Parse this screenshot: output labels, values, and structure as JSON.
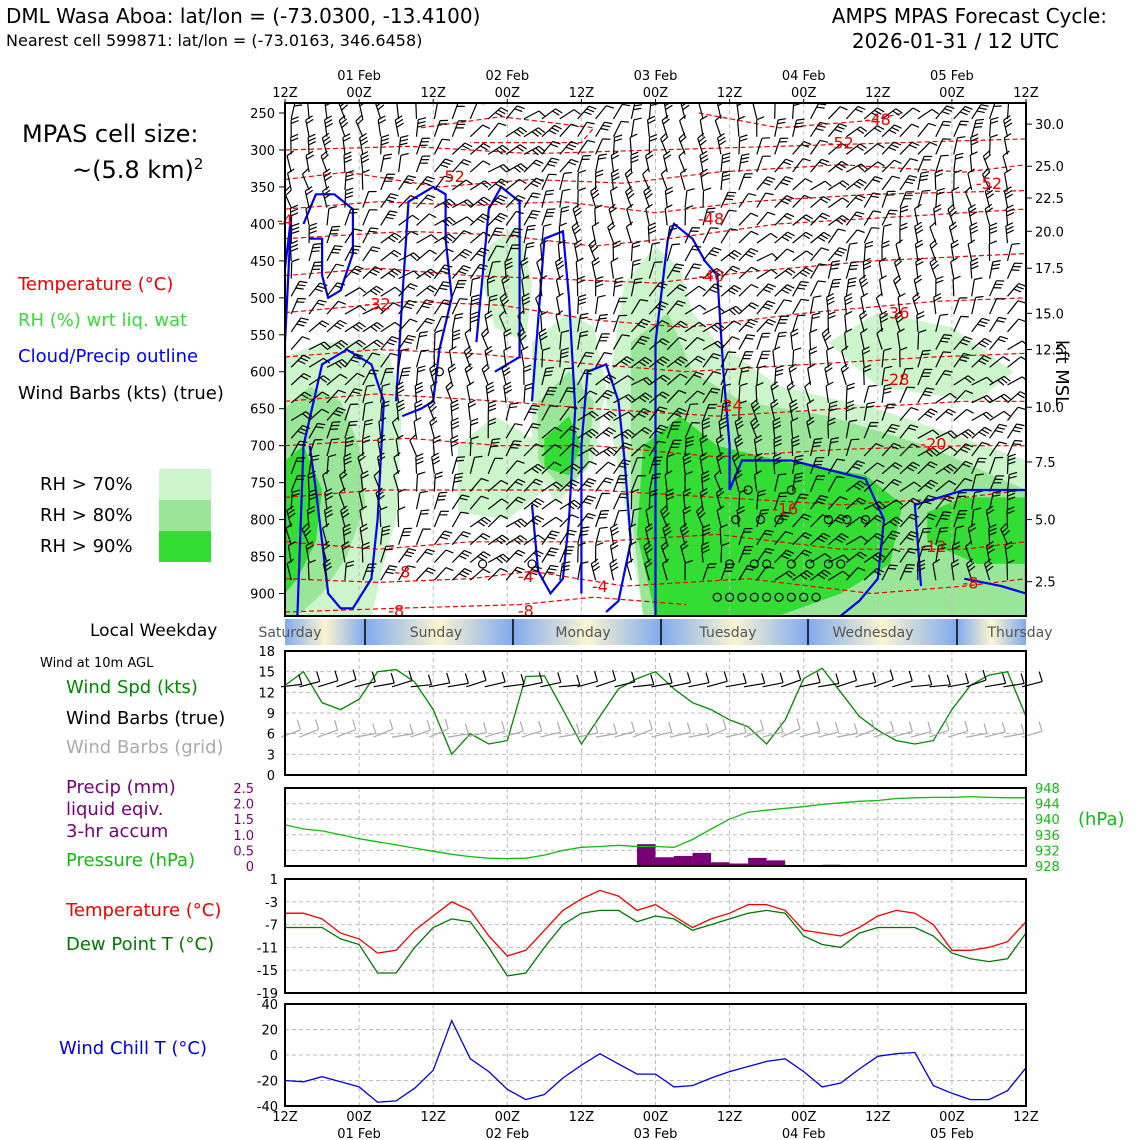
{
  "header": {
    "title_left": "DML Wasa Aboa: lat/lon = (-73.0300, -13.4100)",
    "subtitle_left": "Nearest cell 599871: lat/lon = (-73.0163, 346.6458)",
    "title_right_line1": "AMPS MPAS Forecast Cycle:",
    "title_right_line2": "2026-01-31 / 12 UTC"
  },
  "cell_size": {
    "line1": "MPAS cell size:",
    "line2": "~(5.8 km)",
    "exp": "2"
  },
  "legend": {
    "temperature": "Temperature (°C)",
    "rh": "RH (%) wrt liq. wat",
    "cloud": "Cloud/Precip outline",
    "barbs": "Wind Barbs (kts) (true)",
    "rh70": "RH > 70%",
    "rh80": "RH > 80%",
    "rh90": "RH > 90%"
  },
  "colors": {
    "rh70": "#ccf5cc",
    "rh80": "#99e699",
    "rh90": "#33dd33",
    "temp": "#ee0000",
    "cloud": "#0000ee",
    "windspd": "#008800",
    "pressure": "#11bb11",
    "precip": "#770077",
    "dewpoint": "#007700",
    "windchill": "#0000dd",
    "grid_barb": "#aaaaaa"
  },
  "top_axis": {
    "hour_labels": [
      "12Z",
      "00Z",
      "12Z",
      "00Z",
      "12Z",
      "00Z",
      "12Z",
      "00Z",
      "12Z",
      "00Z",
      "12Z"
    ],
    "date_labels": [
      "01 Feb",
      "02 Feb",
      "03 Feb",
      "04 Feb",
      "05 Feb"
    ]
  },
  "bottom_axis": {
    "hour_labels": [
      "12Z",
      "00Z",
      "12Z",
      "00Z",
      "12Z",
      "00Z",
      "12Z",
      "00Z",
      "12Z",
      "00Z",
      "12Z"
    ],
    "date_labels": [
      "01 Feb",
      "02 Feb",
      "03 Feb",
      "04 Feb",
      "05 Feb"
    ]
  },
  "weekday_strip": {
    "title": "Local Weekday",
    "days": [
      "Saturday",
      "Sunday",
      "Monday",
      "Tuesday",
      "Wednesday",
      "Thursday"
    ]
  },
  "chart_data": [
    {
      "type": "heatmap",
      "name": "cross-section",
      "ylabel_right": "kft MSL",
      "y_pressure_ticks": [
        "250",
        "300",
        "350",
        "400",
        "450",
        "500",
        "550",
        "600",
        "650",
        "700",
        "750",
        "800",
        "850",
        "900"
      ],
      "y_pressure_values": [
        250,
        300,
        350,
        400,
        450,
        500,
        550,
        600,
        650,
        700,
        750,
        800,
        850,
        900
      ],
      "y_height_ticks": [
        "30.0",
        "25.0",
        "22.5",
        "20.0",
        "17.5",
        "15.0",
        "12.5",
        "10.0",
        "7.5",
        "5.0",
        "2.5"
      ],
      "y_height_pressure": [
        265,
        322,
        365,
        410,
        460,
        521,
        570,
        648,
        722,
        800,
        884
      ],
      "x_range_hours": [
        0,
        120
      ],
      "temperature_contour_labels": [
        {
          "text": "-48",
          "t": 96,
          "p": 258
        },
        {
          "text": "-52",
          "t": 90,
          "p": 290
        },
        {
          "text": "-52",
          "t": 114,
          "p": 345
        },
        {
          "text": "-52",
          "t": 27,
          "p": 335
        },
        {
          "text": "-48",
          "t": 69,
          "p": 393
        },
        {
          "text": "-40",
          "t": 69,
          "p": 470
        },
        {
          "text": "-36",
          "t": 99,
          "p": 520
        },
        {
          "text": "-32",
          "t": 15,
          "p": 508
        },
        {
          "text": "-28",
          "t": 99,
          "p": 610
        },
        {
          "text": "-24",
          "t": 72,
          "p": 645
        },
        {
          "text": "-20",
          "t": 105,
          "p": 697
        },
        {
          "text": "-16",
          "t": 81,
          "p": 785
        },
        {
          "text": "-12",
          "t": 105,
          "p": 836
        },
        {
          "text": "-8",
          "t": 111,
          "p": 885
        },
        {
          "text": "-8",
          "t": 19,
          "p": 870
        },
        {
          "text": "-4",
          "t": 39,
          "p": 876
        },
        {
          "text": "-4",
          "t": 51,
          "p": 890
        },
        {
          "text": "-8",
          "t": 18,
          "p": 923
        },
        {
          "text": "-8",
          "t": 39,
          "p": 923
        },
        {
          "text": "-4",
          "t": 0,
          "p": 395
        }
      ]
    },
    {
      "type": "line",
      "name": "wind-speed",
      "title": "Wind at 10m AGL",
      "legend": [
        "Wind Spd (kts)",
        "Wind Barbs (true)",
        "Wind Barbs (grid)"
      ],
      "ylim": [
        0,
        18
      ],
      "yticks": [
        "0",
        "3",
        "6",
        "9",
        "12",
        "15",
        "18"
      ],
      "x_hours": [
        0,
        3,
        6,
        9,
        12,
        15,
        18,
        21,
        24,
        27,
        30,
        33,
        36,
        39,
        42,
        45,
        48,
        51,
        54,
        57,
        60,
        63,
        66,
        69,
        72,
        75,
        78,
        81,
        84,
        87,
        90,
        93,
        96,
        99,
        102,
        105,
        108,
        111,
        114,
        117,
        120
      ],
      "values": [
        13,
        15,
        10.5,
        9.5,
        11,
        15,
        15.3,
        13.5,
        9.5,
        3,
        6,
        4.5,
        5,
        14.3,
        14.4,
        9.5,
        4.5,
        8.5,
        12.5,
        14,
        15,
        12.5,
        10.5,
        9.5,
        8,
        7,
        4.5,
        8,
        14,
        15.5,
        12,
        8.5,
        6.5,
        5,
        4.5,
        5,
        9.5,
        13,
        14.5,
        15,
        8.5
      ]
    },
    {
      "type": "bar",
      "name": "precip-pressure",
      "legend": [
        "Precip (mm)",
        "liquid eqiv.",
        "3-hr accum",
        "Pressure (hPa)"
      ],
      "precip_ylim": [
        0,
        2.5
      ],
      "precip_yticks": [
        "0",
        "0.5",
        "1.0",
        "1.5",
        "2.0",
        "2.5"
      ],
      "pressure_ylim": [
        928,
        948
      ],
      "pressure_yticks": [
        "928",
        "932",
        "936",
        "940",
        "944",
        "948"
      ],
      "pressure_unit": "(hPa)",
      "precip_bars": [
        {
          "t": 58.5,
          "v": 0.7
        },
        {
          "t": 61.5,
          "v": 0.28
        },
        {
          "t": 64.5,
          "v": 0.32
        },
        {
          "t": 67.5,
          "v": 0.42
        },
        {
          "t": 70.5,
          "v": 0.12
        },
        {
          "t": 73.5,
          "v": 0.08
        },
        {
          "t": 76.5,
          "v": 0.26
        },
        {
          "t": 79.5,
          "v": 0.18
        },
        {
          "t": 88.5,
          "v": 0.04
        }
      ],
      "pressure_x_hours": [
        0,
        3,
        6,
        9,
        12,
        15,
        18,
        21,
        24,
        27,
        30,
        33,
        36,
        39,
        42,
        45,
        48,
        51,
        54,
        57,
        60,
        63,
        66,
        69,
        72,
        75,
        78,
        81,
        84,
        87,
        90,
        93,
        96,
        99,
        102,
        105,
        108,
        111,
        114,
        117,
        120
      ],
      "pressure_values": [
        938.6,
        937.5,
        937,
        936,
        935,
        934.2,
        933.4,
        932.6,
        931.8,
        931,
        930.4,
        930,
        929.9,
        930,
        930.8,
        932,
        932.8,
        933,
        933.3,
        933,
        933,
        932.8,
        934.8,
        937.5,
        940,
        941.8,
        942.3,
        942.8,
        943.2,
        943.8,
        944.2,
        944.6,
        944.8,
        945.3,
        945.5,
        945.6,
        945.6,
        945.8,
        945.6,
        945.5,
        945.5
      ]
    },
    {
      "type": "line",
      "name": "temperature-dewpoint",
      "legend": [
        "Temperature (°C)",
        "Dew Point T (°C)"
      ],
      "ylim": [
        -19,
        1
      ],
      "yticks": [
        "1",
        "-3",
        "-7",
        "-11",
        "-15",
        "-19"
      ],
      "x_hours": [
        0,
        3,
        6,
        9,
        12,
        15,
        18,
        21,
        24,
        27,
        30,
        33,
        36,
        39,
        42,
        45,
        48,
        51,
        54,
        57,
        60,
        63,
        66,
        69,
        72,
        75,
        78,
        81,
        84,
        87,
        90,
        93,
        96,
        99,
        102,
        105,
        108,
        111,
        114,
        117,
        120
      ],
      "series": [
        {
          "name": "Temperature",
          "values": [
            -5,
            -5,
            -6,
            -8.5,
            -9.5,
            -12,
            -11.5,
            -8,
            -5.5,
            -3,
            -4.5,
            -9,
            -12.5,
            -11.5,
            -8,
            -4.5,
            -2.5,
            -1,
            -2,
            -4.5,
            -3.5,
            -5.5,
            -7.5,
            -6,
            -5,
            -3.5,
            -3.5,
            -4.5,
            -8,
            -8.5,
            -9,
            -7.5,
            -5.5,
            -4.5,
            -5,
            -7,
            -11.5,
            -11.5,
            -11,
            -10,
            -6.5
          ]
        },
        {
          "name": "Dew Point",
          "values": [
            -7.5,
            -7.5,
            -7.5,
            -9.5,
            -10.5,
            -15.5,
            -15.5,
            -11,
            -7.5,
            -6,
            -6.5,
            -11,
            -16,
            -15.5,
            -11,
            -7,
            -5,
            -4.5,
            -4.5,
            -6.5,
            -5.5,
            -6,
            -8,
            -7,
            -6,
            -5,
            -4.5,
            -5,
            -9,
            -10.5,
            -11,
            -8.5,
            -7.5,
            -7.5,
            -7.5,
            -9,
            -12,
            -13,
            -13.5,
            -13,
            -8.5
          ]
        }
      ]
    },
    {
      "type": "line",
      "name": "wind-chill",
      "legend": [
        "Wind Chill T (°C)"
      ],
      "ylim": [
        -40,
        40
      ],
      "yticks": [
        "40",
        "20",
        "0",
        "-20",
        "-40"
      ],
      "x_hours": [
        0,
        3,
        6,
        9,
        12,
        15,
        18,
        21,
        24,
        27,
        30,
        33,
        36,
        39,
        42,
        45,
        48,
        51,
        54,
        57,
        60,
        63,
        66,
        69,
        72,
        75,
        78,
        81,
        84,
        87,
        90,
        93,
        96,
        99,
        102,
        105,
        108,
        111,
        114,
        117,
        120
      ],
      "values": [
        -20,
        -21,
        -17,
        -21,
        -25,
        -37,
        -36,
        -26,
        -12,
        27,
        -3,
        -13,
        -27,
        -35,
        -31,
        -18,
        -8,
        1,
        -7,
        -15,
        -15,
        -25,
        -24,
        -18,
        -13,
        -9,
        -5,
        -3,
        -13,
        -25,
        -22,
        -11,
        -1,
        1,
        2,
        -24,
        -30,
        -35,
        -35,
        -28,
        -10
      ]
    }
  ]
}
